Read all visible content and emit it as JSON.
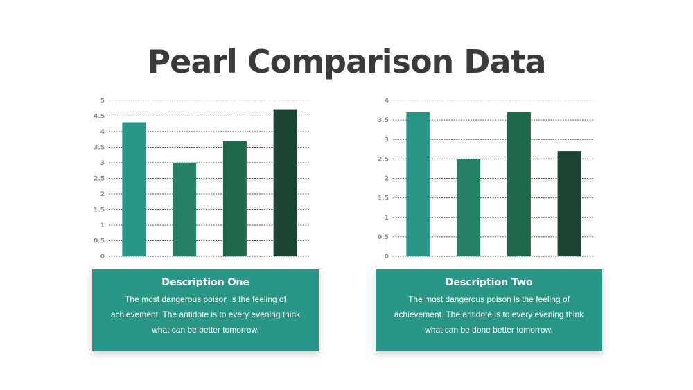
{
  "title": "Pearl Comparison Data",
  "colors": {
    "background": "#ffffff",
    "title": "#3a3a3a",
    "box": "#2a9687",
    "bar_palette": [
      "#2a9687",
      "#258066",
      "#1f6a4b",
      "#1b4634"
    ]
  },
  "chart_data": [
    {
      "type": "bar",
      "categories": [
        "",
        "",
        "",
        ""
      ],
      "values": [
        4.3,
        3.0,
        3.7,
        4.7
      ],
      "ylim": [
        0,
        5
      ],
      "yticks": [
        "0",
        "0.5",
        "1",
        "1.5",
        "2",
        "2.5",
        "3",
        "3.5",
        "4",
        "4.5",
        "5"
      ],
      "grid": true,
      "title": "",
      "xlabel": "",
      "ylabel": ""
    },
    {
      "type": "bar",
      "categories": [
        "",
        "",
        "",
        ""
      ],
      "values": [
        3.7,
        2.5,
        3.7,
        2.7
      ],
      "ylim": [
        0,
        4
      ],
      "yticks": [
        "0",
        "0.5",
        "1",
        "1.5",
        "2",
        "2.5",
        "3",
        "3.5",
        "4"
      ],
      "grid": true,
      "title": "",
      "xlabel": "",
      "ylabel": ""
    }
  ],
  "descriptions": [
    {
      "title": "Description One",
      "body": "The most dangerous poison is the feeling of achievement. The antidote is to every evening think what can be better tomorrow."
    },
    {
      "title": "Description Two",
      "body": "The most dangerous poison is the feeling of achievement. The antidote is to every evening think what can be done better tomorrow."
    }
  ]
}
